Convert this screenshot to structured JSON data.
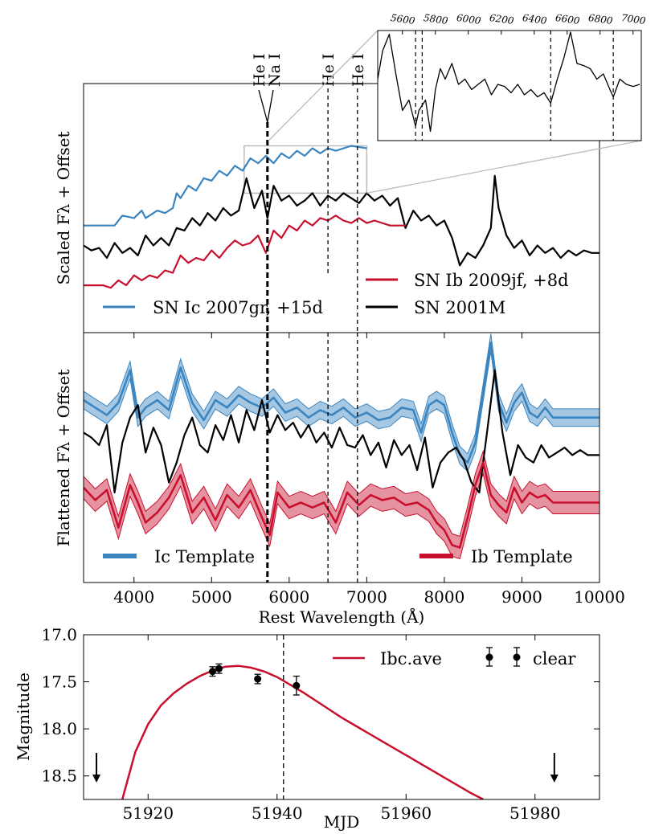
{
  "chart_data": [
    {
      "panel": "top",
      "type": "line",
      "xlabel": "",
      "ylabel": "Scaled Fλ + Offset",
      "xlim": [
        3350,
        10000
      ],
      "ylim": [
        0,
        10
      ],
      "line_marks": [
        {
          "label": "He I",
          "x": 5680
        },
        {
          "label": "Na I",
          "x": 5720
        },
        {
          "label": "He I",
          "x": 6500
        },
        {
          "label": "He I",
          "x": 6880
        }
      ],
      "zoom_box": {
        "x": [
          5420,
          7000
        ],
        "y": [
          5.6,
          7.5
        ]
      },
      "legend": [
        {
          "label": "SN Ic 2007gr, +15d",
          "color": "#3a85c0"
        },
        {
          "label": "SN 2001M",
          "color": "#000000"
        },
        {
          "label": "SN Ib 2009jf, +8d",
          "color": "#c8102e"
        }
      ],
      "series": [
        {
          "name": "SN Ic 2007gr",
          "color": "#3a85c0",
          "x": [
            3350,
            3600,
            3750,
            3850,
            4000,
            4100,
            4150,
            4300,
            4400,
            4500,
            4550,
            4600,
            4700,
            4800,
            4900,
            5000,
            5100,
            5200,
            5300,
            5400,
            5500,
            5600,
            5700,
            5800,
            5900,
            6000,
            6100,
            6200,
            6300,
            6400,
            6500,
            6600,
            6800,
            7000
          ],
          "y": [
            4.3,
            4.3,
            4.3,
            4.7,
            4.6,
            4.9,
            4.6,
            4.9,
            4.8,
            5.0,
            5.6,
            5.4,
            5.9,
            5.7,
            6.2,
            6.1,
            6.5,
            6.3,
            6.7,
            6.5,
            7.0,
            6.8,
            7.1,
            6.8,
            7.2,
            7.0,
            7.3,
            7.1,
            7.4,
            7.2,
            7.4,
            7.3,
            7.5,
            7.4
          ]
        },
        {
          "name": "SN 2001M",
          "color": "#000000",
          "x": [
            3350,
            3450,
            3550,
            3650,
            3750,
            3850,
            3950,
            4050,
            4150,
            4250,
            4350,
            4450,
            4550,
            4650,
            4750,
            4850,
            4950,
            5050,
            5150,
            5250,
            5350,
            5450,
            5550,
            5650,
            5720,
            5800,
            5900,
            6000,
            6100,
            6200,
            6300,
            6400,
            6500,
            6600,
            6700,
            6800,
            6900,
            7000,
            7100,
            7200,
            7300,
            7400,
            7500,
            7600,
            7700,
            7800,
            7900,
            8000,
            8100,
            8200,
            8300,
            8400,
            8500,
            8600,
            8650,
            8700,
            8800,
            8900,
            9000,
            9100,
            9200,
            9300,
            9400,
            9500,
            9600,
            9700,
            9800,
            9900,
            10000
          ],
          "y": [
            3.5,
            3.3,
            3.4,
            3.0,
            3.6,
            3.2,
            3.4,
            3.1,
            3.9,
            3.5,
            3.8,
            3.5,
            4.2,
            4.1,
            4.6,
            4.3,
            4.8,
            4.5,
            5.0,
            4.7,
            4.9,
            6.2,
            5.0,
            5.7,
            4.6,
            5.9,
            5.3,
            5.5,
            5.1,
            5.3,
            5.6,
            5.1,
            5.5,
            5.3,
            5.6,
            5.4,
            5.2,
            5.6,
            5.3,
            5.5,
            5.1,
            5.4,
            4.2,
            4.9,
            4.5,
            4.7,
            4.3,
            4.5,
            3.8,
            2.7,
            3.2,
            3.0,
            3.5,
            4.2,
            6.3,
            5.0,
            3.9,
            3.4,
            3.7,
            3.1,
            3.5,
            3.2,
            3.4,
            3.0,
            3.3,
            3.1,
            3.3,
            3.2,
            3.2
          ]
        },
        {
          "name": "SN Ib 2009jf",
          "color": "#c8102e",
          "x": [
            3350,
            3600,
            3700,
            3800,
            3900,
            4000,
            4100,
            4200,
            4300,
            4400,
            4500,
            4600,
            4700,
            4800,
            4900,
            5000,
            5100,
            5200,
            5300,
            5400,
            5500,
            5600,
            5700,
            5800,
            5900,
            6000,
            6100,
            6200,
            6300,
            6400,
            6500,
            6600,
            6700,
            6800,
            6900,
            7000,
            7100,
            7300,
            7500
          ],
          "y": [
            1.9,
            1.9,
            1.8,
            2.1,
            1.9,
            2.3,
            2.1,
            2.3,
            2.2,
            2.5,
            2.4,
            3.1,
            2.8,
            3.0,
            2.9,
            3.3,
            3.0,
            3.4,
            3.7,
            3.5,
            3.6,
            3.9,
            3.2,
            4.1,
            3.8,
            4.3,
            4.1,
            4.5,
            4.3,
            4.6,
            4.5,
            4.7,
            4.5,
            4.4,
            4.6,
            4.4,
            4.5,
            4.3,
            4.3
          ]
        }
      ],
      "inset": {
        "x_ticks": [
          "5600",
          "5800",
          "6000",
          "6200",
          "6400",
          "6600",
          "6800",
          "7000"
        ],
        "xlim": [
          5450,
          7050
        ],
        "dashed_lines": [
          5680,
          5720,
          6500,
          6880
        ],
        "x": [
          5450,
          5480,
          5520,
          5560,
          5600,
          5640,
          5680,
          5700,
          5740,
          5770,
          5800,
          5830,
          5860,
          5900,
          5940,
          5980,
          6020,
          6060,
          6100,
          6140,
          6180,
          6220,
          6260,
          6300,
          6340,
          6380,
          6420,
          6460,
          6500,
          6540,
          6580,
          6620,
          6660,
          6700,
          6740,
          6780,
          6820,
          6860,
          6880,
          6920,
          6960,
          7000,
          7040
        ],
        "y": [
          0.55,
          0.82,
          0.98,
          0.6,
          0.25,
          0.35,
          0.1,
          0.25,
          0.35,
          0.05,
          0.45,
          0.65,
          0.55,
          0.7,
          0.5,
          0.55,
          0.45,
          0.5,
          0.55,
          0.4,
          0.5,
          0.48,
          0.42,
          0.5,
          0.4,
          0.45,
          0.38,
          0.42,
          0.32,
          0.55,
          0.75,
          1.0,
          0.7,
          0.68,
          0.65,
          0.55,
          0.6,
          0.45,
          0.38,
          0.55,
          0.5,
          0.48,
          0.5
        ]
      }
    },
    {
      "panel": "middle",
      "type": "line",
      "xlabel": "Rest Wavelength (Å)",
      "ylabel": "Flattened Fλ + Offset",
      "xlim": [
        3350,
        10000
      ],
      "ylim": [
        0,
        10
      ],
      "x_ticks": [
        "4000",
        "5000",
        "6000",
        "7000",
        "8000",
        "9000",
        "10000"
      ],
      "legend": [
        {
          "label": "Ic Template",
          "color": "#3a85c0"
        },
        {
          "label": "Ib Template",
          "color": "#c8102e"
        }
      ],
      "series": [
        {
          "name": "Ic Template",
          "color": "#3a85c0",
          "band": 0.35,
          "x": [
            3350,
            3500,
            3650,
            3800,
            3950,
            4050,
            4150,
            4300,
            4450,
            4600,
            4750,
            4900,
            5050,
            5200,
            5350,
            5500,
            5650,
            5800,
            5950,
            6100,
            6250,
            6400,
            6550,
            6700,
            6850,
            7000,
            7150,
            7300,
            7450,
            7600,
            7700,
            7800,
            7900,
            8000,
            8100,
            8200,
            8300,
            8400,
            8500,
            8600,
            8700,
            8800,
            8900,
            9000,
            9100,
            9200,
            9300,
            9400,
            10000
          ],
          "y": [
            7.3,
            7.0,
            6.7,
            7.2,
            8.5,
            6.6,
            7.0,
            7.3,
            6.9,
            8.6,
            7.2,
            6.5,
            7.3,
            7.0,
            7.5,
            7.2,
            7.0,
            7.4,
            6.8,
            7.0,
            6.6,
            6.9,
            6.7,
            7.0,
            6.6,
            6.8,
            6.5,
            6.6,
            7.0,
            6.9,
            6.0,
            7.1,
            7.3,
            7.1,
            6.0,
            5.1,
            4.8,
            5.6,
            7.6,
            9.6,
            7.2,
            6.4,
            7.2,
            7.6,
            6.8,
            6.6,
            7.0,
            6.6,
            6.6
          ]
        },
        {
          "name": "SN 2001M",
          "color": "#000000",
          "x": [
            3350,
            3450,
            3550,
            3650,
            3750,
            3850,
            3950,
            4050,
            4150,
            4250,
            4350,
            4450,
            4550,
            4650,
            4750,
            4850,
            4950,
            5050,
            5150,
            5250,
            5350,
            5450,
            5550,
            5650,
            5750,
            5850,
            5950,
            6050,
            6150,
            6250,
            6350,
            6450,
            6550,
            6650,
            6750,
            6850,
            6950,
            7050,
            7150,
            7250,
            7350,
            7450,
            7550,
            7650,
            7750,
            7850,
            7950,
            8050,
            8150,
            8250,
            8350,
            8450,
            8550,
            8650,
            8750,
            8850,
            8950,
            9050,
            9150,
            9250,
            9350,
            9450,
            9550,
            9650,
            9750,
            9850,
            10000
          ],
          "y": [
            6.0,
            5.8,
            5.5,
            6.3,
            3.6,
            5.6,
            6.6,
            7.1,
            5.2,
            6.2,
            5.5,
            4.0,
            4.8,
            5.9,
            6.6,
            5.5,
            5.2,
            6.3,
            5.7,
            6.7,
            5.6,
            6.9,
            6.1,
            7.3,
            6.0,
            6.7,
            6.1,
            6.4,
            5.8,
            6.3,
            5.6,
            6.0,
            5.4,
            6.2,
            5.5,
            5.4,
            5.9,
            5.1,
            5.6,
            4.6,
            5.7,
            5.1,
            5.5,
            4.5,
            5.8,
            3.8,
            4.8,
            5.2,
            5.4,
            4.9,
            4.0,
            3.6,
            6.0,
            8.5,
            6.0,
            4.3,
            5.5,
            5.0,
            4.8,
            5.5,
            5.0,
            5.2,
            5.4,
            5.1,
            5.3,
            5.1,
            5.1
          ]
        },
        {
          "name": "Ib Template",
          "color": "#c8102e",
          "band": 0.45,
          "x": [
            3350,
            3500,
            3650,
            3800,
            3950,
            4050,
            4150,
            4300,
            4450,
            4600,
            4750,
            4900,
            5050,
            5200,
            5350,
            5500,
            5650,
            5750,
            5850,
            6000,
            6150,
            6300,
            6450,
            6600,
            6750,
            6900,
            7050,
            7200,
            7350,
            7500,
            7650,
            7800,
            7900,
            8000,
            8100,
            8200,
            8300,
            8400,
            8500,
            8600,
            8700,
            8800,
            8900,
            9000,
            9100,
            9200,
            9300,
            9400,
            10000
          ],
          "y": [
            3.8,
            3.3,
            3.7,
            2.2,
            3.9,
            3.2,
            2.4,
            2.8,
            3.4,
            4.3,
            2.8,
            3.4,
            2.5,
            3.5,
            3.0,
            3.7,
            2.6,
            1.9,
            3.6,
            3.0,
            3.2,
            3.0,
            3.2,
            2.4,
            3.6,
            3.1,
            3.5,
            3.3,
            3.4,
            3.1,
            3.2,
            2.9,
            2.4,
            2.1,
            1.5,
            1.4,
            2.6,
            3.9,
            4.8,
            3.5,
            3.1,
            2.8,
            3.8,
            3.2,
            3.6,
            3.4,
            3.5,
            3.2,
            3.2
          ]
        }
      ],
      "line_marks": [
        5720,
        6500,
        6880
      ]
    },
    {
      "panel": "bottom",
      "type": "line",
      "xlabel": "MJD",
      "ylabel": "Magnitude",
      "xlim": [
        51910,
        51990
      ],
      "ylim": [
        18.75,
        17.0
      ],
      "x_ticks": [
        "51920",
        "51940",
        "51960",
        "51980"
      ],
      "y_ticks": [
        "17.0",
        "17.5",
        "18.0",
        "18.5"
      ],
      "legend": [
        {
          "label": "Ibc.ave",
          "color": "#c8102e"
        },
        {
          "label": "clear",
          "color": "#000000"
        }
      ],
      "vline_x": 51941,
      "model": {
        "name": "Ibc.ave",
        "color": "#c8102e",
        "x": [
          51916,
          51918,
          51920,
          51922,
          51924,
          51926,
          51928,
          51930,
          51932,
          51934,
          51936,
          51938,
          51940,
          51942,
          51944,
          51946,
          51948,
          51950,
          51952,
          51954,
          51956,
          51958,
          51960,
          51962,
          51964,
          51966,
          51968,
          51970,
          51972
        ],
        "y": [
          18.75,
          18.25,
          17.95,
          17.75,
          17.62,
          17.52,
          17.44,
          17.38,
          17.34,
          17.33,
          17.35,
          17.39,
          17.45,
          17.53,
          17.61,
          17.7,
          17.79,
          17.88,
          17.96,
          18.04,
          18.12,
          18.2,
          18.28,
          18.36,
          18.44,
          18.52,
          18.6,
          18.68,
          18.75
        ]
      },
      "points": {
        "name": "clear",
        "x": [
          51930,
          51931,
          51937,
          51943
        ],
        "y": [
          17.39,
          17.36,
          17.47,
          17.54
        ],
        "err": [
          0.05,
          0.05,
          0.05,
          0.1
        ]
      },
      "upper_limits": [
        51912,
        51983
      ]
    }
  ]
}
